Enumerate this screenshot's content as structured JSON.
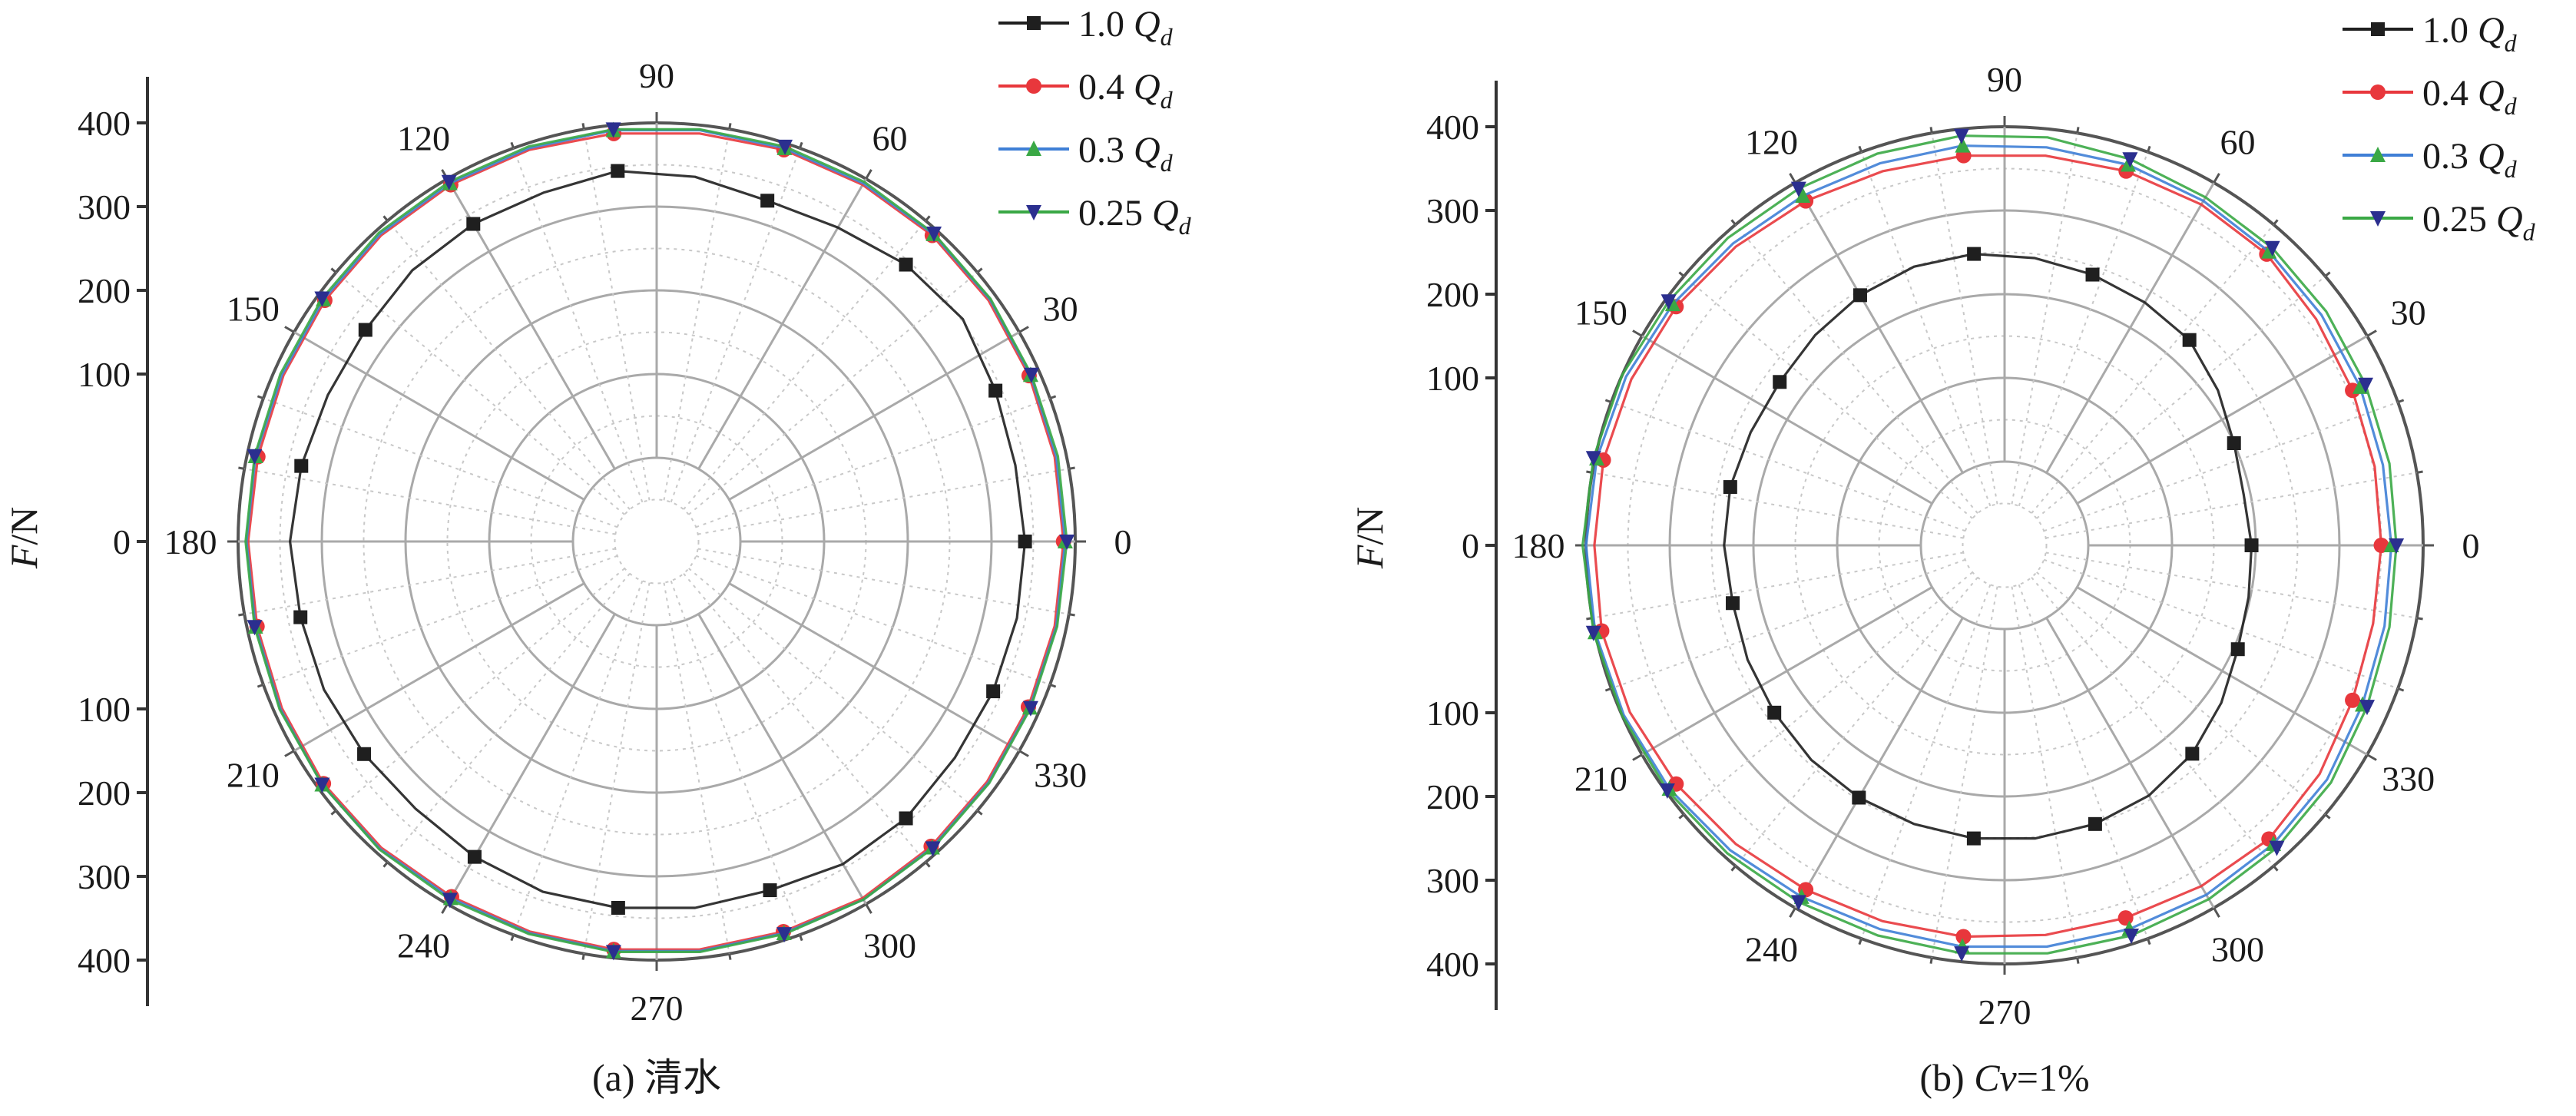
{
  "colors": {
    "1.0 Qd": "#1f1f1f",
    "0.4 Qd": "#e8373c",
    "0.3 Qd": "#3f7fd6",
    "0.25 Qd": "#3aa845",
    "marker_0.25 Qd": "#2b2f8f",
    "grid_major": "#a9a9a9",
    "grid_minor": "#c8c8c8",
    "axis": "#333333"
  },
  "chart_data": [
    {
      "type": "polar-line",
      "caption": "(a) 清水",
      "ylabel": "F/N",
      "rlim": [
        -100,
        400
      ],
      "radial_ticks": [
        0,
        100,
        200,
        300,
        400
      ],
      "angle_ticks": [
        0,
        30,
        60,
        90,
        120,
        150,
        180,
        210,
        240,
        270,
        300,
        330
      ],
      "angle_ticks_labeled": [
        0,
        30,
        60,
        90,
        120,
        150,
        180,
        210,
        240,
        270,
        300,
        330
      ],
      "legend": {
        "placement": "top-right",
        "entries": [
          "1.0 Qd",
          "0.4 Qd",
          "0.3 Qd",
          "0.25 Qd"
        ]
      },
      "series": [
        {
          "name": "1.0 Qd",
          "marker": "square",
          "angles": [
            0,
            12,
            24,
            36,
            48,
            60,
            72,
            84,
            96,
            108,
            120,
            132,
            144,
            156,
            168,
            180,
            192,
            204,
            216,
            228,
            240,
            252,
            264,
            276,
            288,
            300,
            312,
            324,
            336,
            348
          ],
          "r": [
            340,
            338,
            343,
            352,
            345,
            333,
            328,
            338,
            345,
            338,
            338,
            336,
            330,
            330,
            334,
            338,
            335,
            335,
            332,
            330,
            335,
            340,
            340,
            340,
            338,
            345,
            345,
            340,
            340,
            340
          ]
        },
        {
          "name": "0.4 Qd",
          "marker": "circle",
          "angles": [
            0,
            12,
            24,
            36,
            48,
            60,
            72,
            84,
            96,
            108,
            120,
            132,
            144,
            156,
            168,
            180,
            192,
            204,
            216,
            228,
            240,
            252,
            264,
            276,
            288,
            300,
            312,
            324,
            336,
            348
          ],
          "r": [
            386,
            386,
            387,
            390,
            392,
            392,
            392,
            390,
            390,
            392,
            392,
            392,
            390,
            388,
            387,
            388,
            388,
            390,
            392,
            392,
            390,
            390,
            390,
            390,
            390,
            392,
            390,
            388,
            386,
            386
          ]
        },
        {
          "name": "0.3 Qd",
          "marker": "triangle-up",
          "angles": [
            0,
            12,
            24,
            36,
            48,
            60,
            72,
            84,
            96,
            108,
            120,
            132,
            144,
            156,
            168,
            180,
            192,
            204,
            216,
            228,
            240,
            252,
            264,
            276,
            288,
            300,
            312,
            324,
            336,
            348
          ],
          "r": [
            388,
            388,
            389,
            392,
            394,
            394,
            394,
            394,
            394,
            394,
            394,
            394,
            392,
            390,
            390,
            390,
            390,
            392,
            394,
            394,
            392,
            392,
            392,
            392,
            392,
            394,
            392,
            390,
            388,
            388
          ]
        },
        {
          "name": "0.25 Qd",
          "marker": "triangle-down",
          "angles": [
            0,
            12,
            24,
            36,
            48,
            60,
            72,
            84,
            96,
            108,
            120,
            132,
            144,
            156,
            168,
            180,
            192,
            204,
            216,
            228,
            240,
            252,
            264,
            276,
            288,
            300,
            312,
            324,
            336,
            348
          ],
          "r": [
            390,
            390,
            390,
            393,
            395,
            396,
            396,
            395,
            395,
            396,
            396,
            396,
            394,
            392,
            391,
            391,
            391,
            393,
            394,
            395,
            394,
            393,
            393,
            393,
            393,
            394,
            393,
            391,
            389,
            389
          ]
        }
      ]
    },
    {
      "type": "polar-line",
      "caption": "(b) Cv=1%",
      "ylabel": "F/N",
      "rlim": [
        -100,
        400
      ],
      "radial_ticks": [
        0,
        100,
        200,
        300,
        400
      ],
      "angle_ticks": [
        0,
        30,
        60,
        90,
        120,
        150,
        180,
        210,
        240,
        270,
        300,
        330
      ],
      "angle_ticks_labeled": [
        0,
        30,
        60,
        90,
        120,
        150,
        180,
        210,
        240,
        270,
        300,
        330
      ],
      "legend": {
        "placement": "top-right",
        "entries": [
          "1.0 Qd",
          "0.4 Qd",
          "0.3 Qd",
          "0.25 Qd"
        ]
      },
      "series": [
        {
          "name": "1.0 Qd",
          "marker": "square",
          "angles": [
            0,
            12,
            24,
            36,
            48,
            60,
            72,
            84,
            96,
            108,
            120,
            132,
            144,
            156,
            168,
            180,
            192,
            204,
            216,
            228,
            240,
            252,
            264,
            276,
            288,
            300,
            312,
            324,
            336,
            348
          ],
          "r": [
            195,
            192,
            200,
            215,
            230,
            235,
            240,
            245,
            250,
            250,
            245,
            238,
            232,
            232,
            235,
            235,
            232,
            236,
            240,
            245,
            248,
            250,
            252,
            252,
            250,
            245,
            235,
            220,
            205,
            198
          ]
        },
        {
          "name": "0.4 Qd",
          "marker": "circle",
          "angles": [
            0,
            12,
            24,
            36,
            48,
            60,
            72,
            84,
            96,
            108,
            120,
            132,
            144,
            156,
            168,
            180,
            192,
            204,
            216,
            228,
            240,
            252,
            264,
            276,
            288,
            300,
            312,
            324,
            336,
            348
          ],
          "r": [
            350,
            352,
            355,
            360,
            368,
            370,
            370,
            368,
            368,
            370,
            375,
            380,
            385,
            388,
            390,
            390,
            392,
            390,
            385,
            380,
            375,
            372,
            370,
            368,
            368,
            370,
            372,
            365,
            355,
            350
          ]
        },
        {
          "name": "0.3 Qd",
          "marker": "triangle-up",
          "angles": [
            0,
            12,
            24,
            36,
            48,
            60,
            72,
            84,
            96,
            108,
            120,
            132,
            144,
            156,
            168,
            180,
            192,
            204,
            216,
            228,
            240,
            252,
            264,
            276,
            288,
            300,
            312,
            324,
            336,
            348
          ],
          "r": [
            362,
            362,
            365,
            368,
            372,
            375,
            378,
            378,
            380,
            380,
            382,
            385,
            390,
            395,
            398,
            400,
            400,
            398,
            395,
            390,
            385,
            382,
            382,
            382,
            382,
            382,
            380,
            376,
            368,
            364
          ]
        },
        {
          "name": "0.25 Qd",
          "marker": "triangle-down",
          "angles": [
            0,
            12,
            24,
            36,
            48,
            60,
            72,
            84,
            96,
            108,
            120,
            132,
            144,
            156,
            168,
            180,
            192,
            204,
            216,
            228,
            240,
            252,
            264,
            276,
            288,
            300,
            312,
            324,
            336,
            348
          ],
          "r": [
            368,
            370,
            372,
            375,
            378,
            380,
            385,
            390,
            392,
            392,
            392,
            394,
            396,
            400,
            402,
            404,
            402,
            400,
            398,
            395,
            392,
            390,
            390,
            390,
            390,
            388,
            386,
            382,
            374,
            370
          ]
        }
      ]
    }
  ],
  "panels": [
    {
      "caption": "(a) 清水",
      "ylabel_main": "F",
      "ylabel_unit": "/N",
      "y_axis_ticks": [
        "400",
        "300",
        "200",
        "100",
        "0",
        "100",
        "200",
        "300",
        "400"
      ],
      "angle_labels": [
        "0",
        "30",
        "60",
        "90",
        "120",
        "150",
        "180",
        "210",
        "240",
        "270",
        "300",
        "330"
      ],
      "legend": [
        {
          "value": "1.0",
          "sym": "Q",
          "sub": "d"
        },
        {
          "value": "0.4",
          "sym": "Q",
          "sub": "d"
        },
        {
          "value": "0.3",
          "sym": "Q",
          "sub": "d"
        },
        {
          "value": "0.25",
          "sym": "Q",
          "sub": "d"
        }
      ]
    },
    {
      "caption": "(b) Cv=1%",
      "ylabel_main": "F",
      "ylabel_unit": "/N",
      "y_axis_ticks": [
        "400",
        "300",
        "200",
        "100",
        "0",
        "100",
        "200",
        "300",
        "400"
      ],
      "angle_labels": [
        "0",
        "30",
        "60",
        "90",
        "120",
        "150",
        "180",
        "210",
        "240",
        "270",
        "300",
        "330"
      ],
      "legend": [
        {
          "value": "1.0",
          "sym": "Q",
          "sub": "d"
        },
        {
          "value": "0.4",
          "sym": "Q",
          "sub": "d"
        },
        {
          "value": "0.3",
          "sym": "Q",
          "sub": "d"
        },
        {
          "value": "0.25",
          "sym": "Q",
          "sub": "d"
        }
      ]
    }
  ]
}
